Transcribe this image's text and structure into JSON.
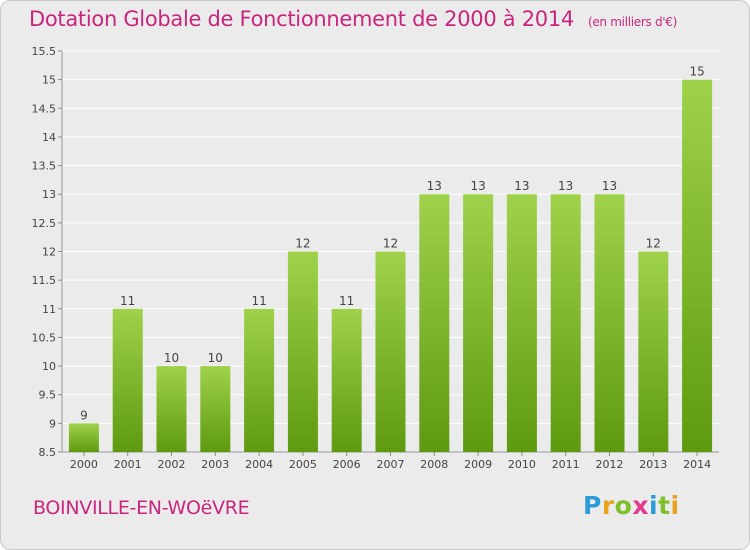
{
  "title": "Dotation Globale de Fonctionnement de 2000 à 2014",
  "unit_note": "(en milliers d'€)",
  "commune": "BOINVILLE-EN-WOëVRE",
  "brand": {
    "letters": [
      "P",
      "r",
      "o",
      "x",
      "i",
      "t",
      "i"
    ],
    "colors": [
      "#2b9bd6",
      "#e8a21c",
      "#7fbf2a",
      "#e23a8c",
      "#2b9bd6",
      "#7fbf2a",
      "#e8a21c"
    ]
  },
  "colors": {
    "title": "#c8267e",
    "bar_top": "#9fd24a",
    "bar_bottom": "#5e9a10",
    "background": "#ebebeb",
    "grid": "#ffffff"
  },
  "chart_data": {
    "type": "bar",
    "categories": [
      "2000",
      "2001",
      "2002",
      "2003",
      "2004",
      "2005",
      "2006",
      "2007",
      "2008",
      "2009",
      "2010",
      "2011",
      "2012",
      "2013",
      "2014"
    ],
    "values": [
      9,
      11,
      10,
      10,
      11,
      12,
      11,
      12,
      13,
      13,
      13,
      13,
      13,
      12,
      15
    ],
    "data_labels": [
      "9",
      "11",
      "10",
      "10",
      "11",
      "12",
      "11",
      "12",
      "13",
      "13",
      "13",
      "13",
      "13",
      "12",
      "15"
    ],
    "ylim": [
      8.5,
      15.5
    ],
    "yticks": [
      "8.5",
      "9",
      "9.5",
      "10",
      "10.5",
      "11",
      "11.5",
      "12",
      "12.5",
      "13",
      "13.5",
      "14",
      "14.5",
      "15",
      "15.5"
    ],
    "grid": true,
    "legend": "none"
  }
}
